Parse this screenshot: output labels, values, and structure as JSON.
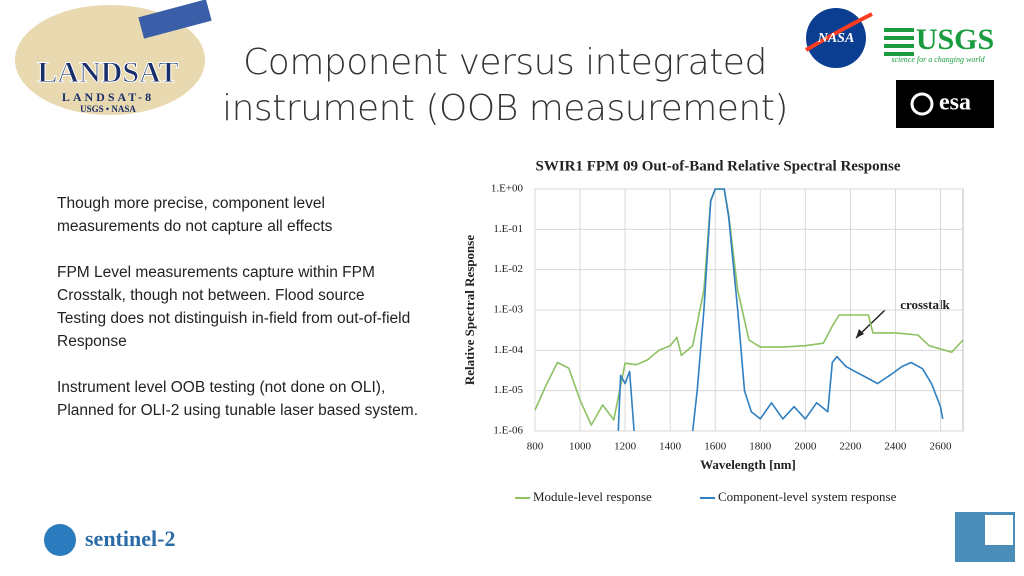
{
  "header": {
    "title": [
      "Component versus integrated",
      "instrument (OOB measurement)"
    ]
  },
  "logos": {
    "landsat": "LANDSAT",
    "landsat8": "LANDSAT-8",
    "landsat_sub": "USGS • NASA",
    "nasa": "NASA",
    "usgs": "USGS",
    "usgs_tagline": "science for a changing world",
    "esa": "esa",
    "sentinel": "sentinel-2"
  },
  "body": {
    "paragraphs": [
      [
        "Though more precise,  component level",
        "measurements do not capture all effects"
      ],
      [
        "FPM Level measurements capture within FPM",
        "Crosstalk, though not between.  Flood source",
        "Testing does not distinguish in-field from out-of-field",
        "Response"
      ],
      [
        "Instrument level OOB testing (not done on OLI),",
        "Planned for OLI-2 using tunable laser based system."
      ]
    ]
  },
  "chart_data": {
    "type": "line",
    "title": "SWIR1 FPM 09 Out-of-Band Relative Spectral Response",
    "x_label": "Wavelength [nm]",
    "y_label": "Relative Spectral Response",
    "annotation": "crosstalk",
    "xlim": [
      800,
      2700
    ],
    "ylim": [
      1e-06,
      1
    ],
    "y_scale": "log",
    "grid": true,
    "xticks": [
      800,
      1000,
      1200,
      1400,
      1600,
      1800,
      2000,
      2200,
      2400,
      2600
    ],
    "yticks": [
      {
        "value": 1,
        "label": "1.E+00"
      },
      {
        "value": 0.1,
        "label": "1.E-01"
      },
      {
        "value": 0.01,
        "label": "1.E-02"
      },
      {
        "value": 0.001,
        "label": "1.E-03"
      },
      {
        "value": 0.0001,
        "label": "1.E-04"
      },
      {
        "value": 1e-05,
        "label": "1.E-05"
      },
      {
        "value": 1e-06,
        "label": "1.E-06"
      }
    ],
    "series": [
      {
        "name": "Module-level response",
        "color": "#8dc161",
        "x": [
          800,
          850,
          900,
          950,
          1000,
          1050,
          1100,
          1150,
          1200,
          1250,
          1300,
          1350,
          1400,
          1430,
          1450,
          1500,
          1550,
          1580,
          1600,
          1640,
          1660,
          1700,
          1750,
          1800,
          1900,
          2000,
          2080,
          2120,
          2150,
          2200,
          2280,
          2300,
          2400,
          2500,
          2550,
          2650,
          2700
        ],
        "values": [
          3.3e-06,
          1.4e-05,
          5e-05,
          3.6e-05,
          5.8e-06,
          1.4e-06,
          4.4e-06,
          1.9e-06,
          4.8e-05,
          4.4e-05,
          5.8e-05,
          0.0001,
          0.00013,
          0.00021,
          7.5e-05,
          0.00013,
          0.0031,
          0.53,
          1,
          1,
          0.23,
          0.0031,
          0.00018,
          0.00012,
          0.00012,
          0.00013,
          0.00015,
          0.0004,
          0.00075,
          0.00075,
          0.00075,
          0.00027,
          0.00027,
          0.00024,
          0.00013,
          9e-05,
          0.00018
        ]
      },
      {
        "name": "Component-level system response",
        "color": "#2f7fc1",
        "x": [
          1170,
          1180,
          1200,
          1220,
          1240,
          1370,
          1500,
          1520,
          1550,
          1580,
          1600,
          1640,
          1660,
          1700,
          1730,
          1760,
          1800,
          1850,
          1900,
          1950,
          2000,
          2050,
          2100,
          2120,
          2140,
          2180,
          2220,
          2280,
          2320,
          2380,
          2430,
          2470,
          2520,
          2560,
          2600,
          2610
        ],
        "values": [
          1e-06,
          2.4e-05,
          1.5e-05,
          3e-05,
          1e-06,
          null,
          1e-06,
          1e-05,
          0.001,
          0.5,
          1,
          1,
          0.2,
          0.001,
          1e-05,
          3e-06,
          2e-06,
          5e-06,
          2e-06,
          4e-06,
          2e-06,
          5e-06,
          3e-06,
          5e-05,
          7e-05,
          4e-05,
          3e-05,
          2e-05,
          1.5e-05,
          2.5e-05,
          4e-05,
          5e-05,
          3.5e-05,
          1.5e-05,
          4e-06,
          2e-06
        ]
      }
    ]
  }
}
